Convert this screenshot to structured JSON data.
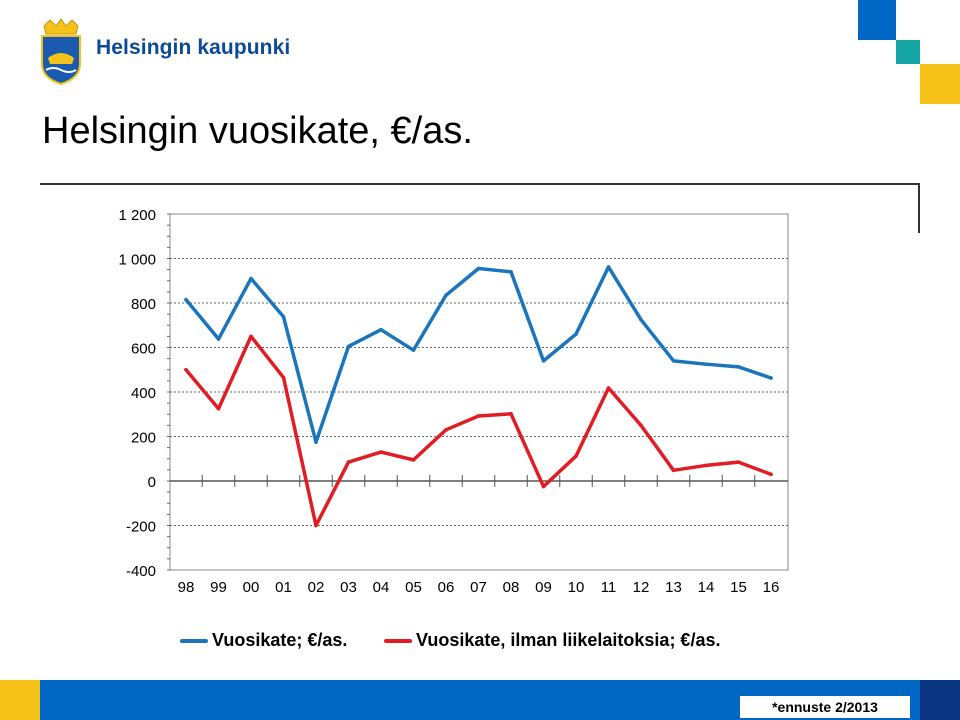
{
  "header": {
    "org_name": "Helsingin kaupunki",
    "logo_icon": "helsinki-coat-of-arms-icon",
    "brand_colors": {
      "blue": "#0067c5",
      "teal": "#16a6a6",
      "yellow": "#f5c21a"
    }
  },
  "slide": {
    "title": "Helsingin vuosikate, €/as."
  },
  "footer": {
    "note": "*ennuste 2/2013"
  },
  "chart_data": {
    "type": "line",
    "categories": [
      "98",
      "99",
      "00",
      "01",
      "02",
      "03",
      "04",
      "05",
      "06",
      "07",
      "08",
      "09",
      "10",
      "11",
      "12",
      "13",
      "14",
      "15",
      "16"
    ],
    "y_tick_labels": [
      "1 200",
      "1 000",
      "800",
      "600",
      "400",
      "200",
      "0",
      "-200",
      "-400"
    ],
    "ylim": [
      -400,
      1200
    ],
    "grid": "horizontal dashed",
    "legend_position": "bottom",
    "series": [
      {
        "name": "Vuosikate; €/as.",
        "color": "#1a75bc",
        "values": [
          815,
          638,
          910,
          738,
          175,
          605,
          680,
          588,
          835,
          955,
          940,
          540,
          660,
          962,
          725,
          540,
          525,
          513,
          463
        ]
      },
      {
        "name": "Vuosikate, ilman liikelaitoksia; €/as.",
        "color": "#e31b23",
        "values": [
          500,
          325,
          650,
          465,
          -200,
          85,
          130,
          95,
          230,
          292,
          302,
          -25,
          112,
          418,
          250,
          48,
          70,
          85,
          30
        ]
      }
    ]
  }
}
